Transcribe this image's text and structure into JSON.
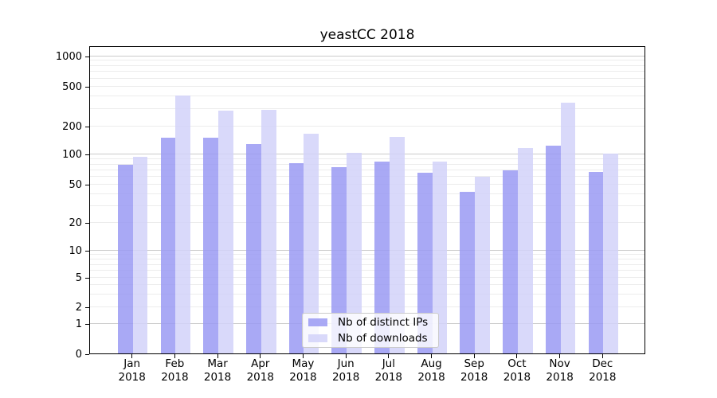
{
  "chart_data": {
    "type": "bar",
    "title": "yeastCC 2018",
    "categories": [
      "Jan",
      "Feb",
      "Mar",
      "Apr",
      "May",
      "Jun",
      "Jul",
      "Aug",
      "Sep",
      "Oct",
      "Nov",
      "Dec"
    ],
    "year_label": "2018",
    "series": [
      {
        "name": "Nb of distinct IPs",
        "color": "#9a9af3",
        "alpha": 0.85,
        "values": [
          78,
          151,
          151,
          128,
          82,
          75,
          84,
          65,
          42,
          69,
          123,
          66
        ]
      },
      {
        "name": "Nb of downloads",
        "color": "#d2d2f9",
        "alpha": 0.85,
        "values": [
          94,
          408,
          286,
          292,
          166,
          104,
          153,
          85,
          60,
          117,
          345,
          101
        ]
      }
    ],
    "yticks": [
      0,
      1,
      2,
      5,
      10,
      20,
      50,
      100,
      200,
      500,
      1000
    ],
    "ylim": [
      0,
      1300
    ],
    "yscale": "symlog",
    "xlabel": "",
    "ylabel": "",
    "grid": true,
    "grid_major_color": "#cbcbcb",
    "grid_minor_color": "#ececec",
    "legend_position": "lower center"
  }
}
